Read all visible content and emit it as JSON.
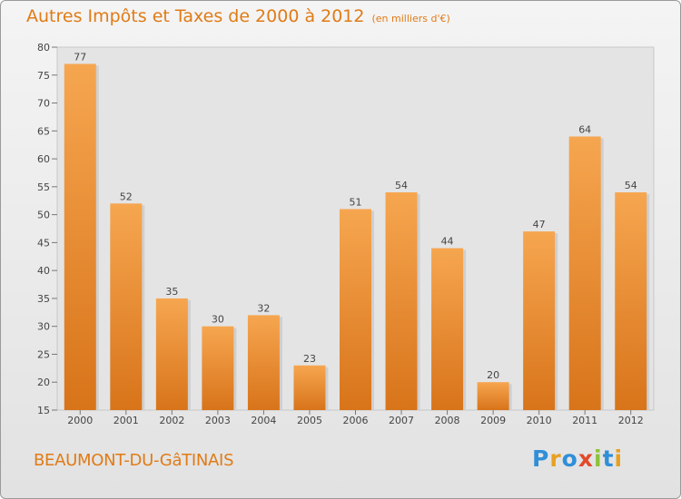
{
  "header": {
    "title": "Autres Impôts et Taxes de 2000 à 2012",
    "subtitle": "(en milliers d'€)"
  },
  "footer": {
    "commune": "BEAUMONT-DU-GâTINAIS",
    "logo_text": "Proxiti",
    "logo_colors": [
      "#2f8fd8",
      "#e8a020",
      "#2f8fd8",
      "#e24a2a",
      "#8cc33a",
      "#2f8fd8",
      "#e8a020"
    ]
  },
  "colors": {
    "bar_top": "#f6a650",
    "bar_bottom": "#d8741a",
    "title": "#e07b16"
  },
  "chart_data": {
    "type": "bar",
    "categories": [
      "2000",
      "2001",
      "2002",
      "2003",
      "2004",
      "2005",
      "2006",
      "2007",
      "2008",
      "2009",
      "2010",
      "2011",
      "2012"
    ],
    "values": [
      77,
      52,
      35,
      30,
      32,
      23,
      51,
      54,
      44,
      20,
      47,
      64,
      54
    ],
    "ylim": [
      15,
      80
    ],
    "yticks": [
      15,
      20,
      25,
      30,
      35,
      40,
      45,
      50,
      55,
      60,
      65,
      70,
      75,
      80
    ],
    "grid": false,
    "xlabel": "",
    "ylabel": ""
  }
}
